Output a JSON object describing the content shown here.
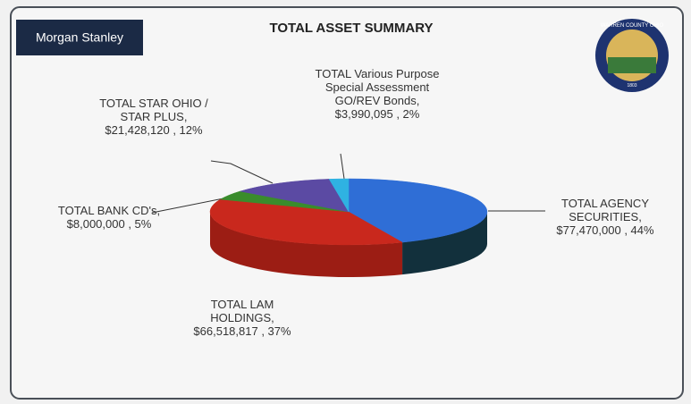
{
  "logo": "Morgan Stanley",
  "seal": {
    "text": "WARREN COUNTY OHIO",
    "year": "1803"
  },
  "chart_data": {
    "type": "pie3d",
    "title": "TOTAL ASSET SUMMARY",
    "categories": [
      "TOTAL AGENCY SECURITIES,",
      "TOTAL LAM HOLDINGS,",
      "TOTAL BANK CD's,",
      "TOTAL STAR OHIO / STAR PLUS,",
      "TOTAL Various Purpose Special Assessment GO/REV Bonds,"
    ],
    "values": [
      77470000,
      66518817,
      8000000,
      21428120,
      3990095
    ],
    "value_labels": [
      "$77,470,000 , 44%",
      "$66,518,817 , 37%",
      "$8,000,000 , 5%",
      "$21,428,120 , 12%",
      "$3,990,095 , 2%"
    ],
    "colors": [
      "#2f6ed6",
      "#c9281d",
      "#3a8c2c",
      "#5b4aa3",
      "#2fb2e2"
    ],
    "side_colors": [
      "#12303c",
      "#9c1d14",
      "#2a6a20",
      "#403478",
      "#2088b0"
    ]
  }
}
